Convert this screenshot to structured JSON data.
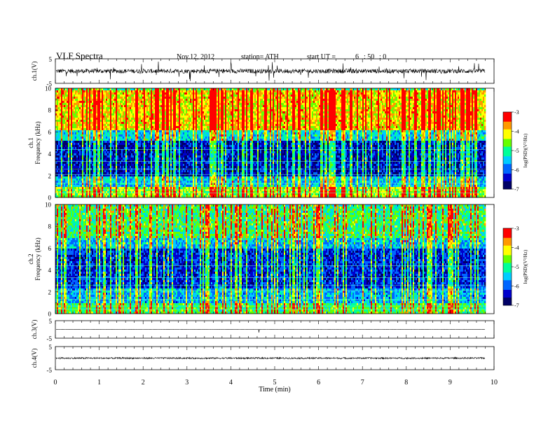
{
  "header": {
    "title": "VLF  Spectra",
    "date": "Nov.12, 2012",
    "station": "station= ATH",
    "start_label": "start  UT  =",
    "start_hour": "6",
    "start_min": ": 50",
    "start_sec": ": 0"
  },
  "chart_data": [
    {
      "type": "line",
      "name": "ch.1(V)",
      "ylabel": "ch.1(V)",
      "xlim": [
        0,
        10
      ],
      "ylim": [
        -5,
        5
      ],
      "yticks": [
        "5",
        "-5"
      ],
      "baseline": 0,
      "description_level": "broadband noise, mostly within +/-1 V with spikes up to ~4 V, data ends near 9.8 min"
    },
    {
      "type": "heatmap",
      "name": "ch.1 spectrogram",
      "ylabel_line1": "ch.1",
      "ylabel_line2": "Frequency  (kHz)",
      "xlim": [
        0,
        9.8
      ],
      "ylim": [
        0,
        10
      ],
      "yticks": [
        "0",
        "2",
        "4",
        "6",
        "8",
        "10"
      ],
      "colorbar": {
        "label": "log(PSD)(V²/Hz)",
        "ticks": [
          "-3",
          "-4",
          "-5",
          "-6",
          "-7"
        ],
        "range": [
          -7,
          -3
        ]
      },
      "bands": [
        {
          "from_khz": 0,
          "to_khz": 1.0,
          "level": -4.5
        },
        {
          "from_khz": 1.0,
          "to_khz": 2.0,
          "level": -5.5
        },
        {
          "from_khz": 2.0,
          "to_khz": 5.2,
          "level": -6.4
        },
        {
          "from_khz": 5.2,
          "to_khz": 6.3,
          "level": -5.3
        },
        {
          "from_khz": 6.3,
          "to_khz": 10,
          "level": -4.1
        }
      ]
    },
    {
      "type": "heatmap",
      "name": "ch.2 spectrogram",
      "ylabel_line1": "ch.2",
      "ylabel_line2": "Frequency  (kHz)",
      "xlim": [
        0,
        9.8
      ],
      "ylim": [
        0,
        10
      ],
      "yticks": [
        "0",
        "2",
        "4",
        "6",
        "8",
        "10"
      ],
      "colorbar": {
        "label": "log(PSD)(V²/Hz)",
        "ticks": [
          "-3",
          "-4",
          "-5",
          "-6",
          "-7"
        ],
        "range": [
          -7,
          -3
        ]
      },
      "bands": [
        {
          "from_khz": 0,
          "to_khz": 1.0,
          "level": -4.8
        },
        {
          "from_khz": 1.0,
          "to_khz": 2.5,
          "level": -5.6
        },
        {
          "from_khz": 2.5,
          "to_khz": 6.0,
          "level": -6.2
        },
        {
          "from_khz": 6.0,
          "to_khz": 7.0,
          "level": -5.5
        },
        {
          "from_khz": 7.0,
          "to_khz": 10,
          "level": -4.9
        }
      ]
    },
    {
      "type": "line",
      "name": "ch.3(V)",
      "ylabel": "ch.3(V)",
      "xlim": [
        0,
        10
      ],
      "ylim": [
        -5,
        5
      ],
      "yticks": [
        "5",
        "-5"
      ],
      "baseline": 0
    },
    {
      "type": "line",
      "name": "ch.4(V)",
      "ylabel": "ch.4(V)",
      "xlim": [
        0,
        10
      ],
      "ylim": [
        -5,
        5
      ],
      "yticks": [
        "5",
        "-5"
      ],
      "baseline": 0
    }
  ],
  "xaxis": {
    "label": "Time  (min)",
    "ticks": [
      "0",
      "1",
      "2",
      "3",
      "4",
      "5",
      "6",
      "7",
      "8",
      "9",
      "10"
    ],
    "range": [
      0,
      10
    ]
  },
  "colors": {
    "axis": "#000000",
    "colormap": [
      "#000066",
      "#0000cc",
      "#0066ff",
      "#00ccff",
      "#00ff99",
      "#66ff00",
      "#ffff00",
      "#ff9900",
      "#ff0000",
      "#ffeeee"
    ]
  }
}
